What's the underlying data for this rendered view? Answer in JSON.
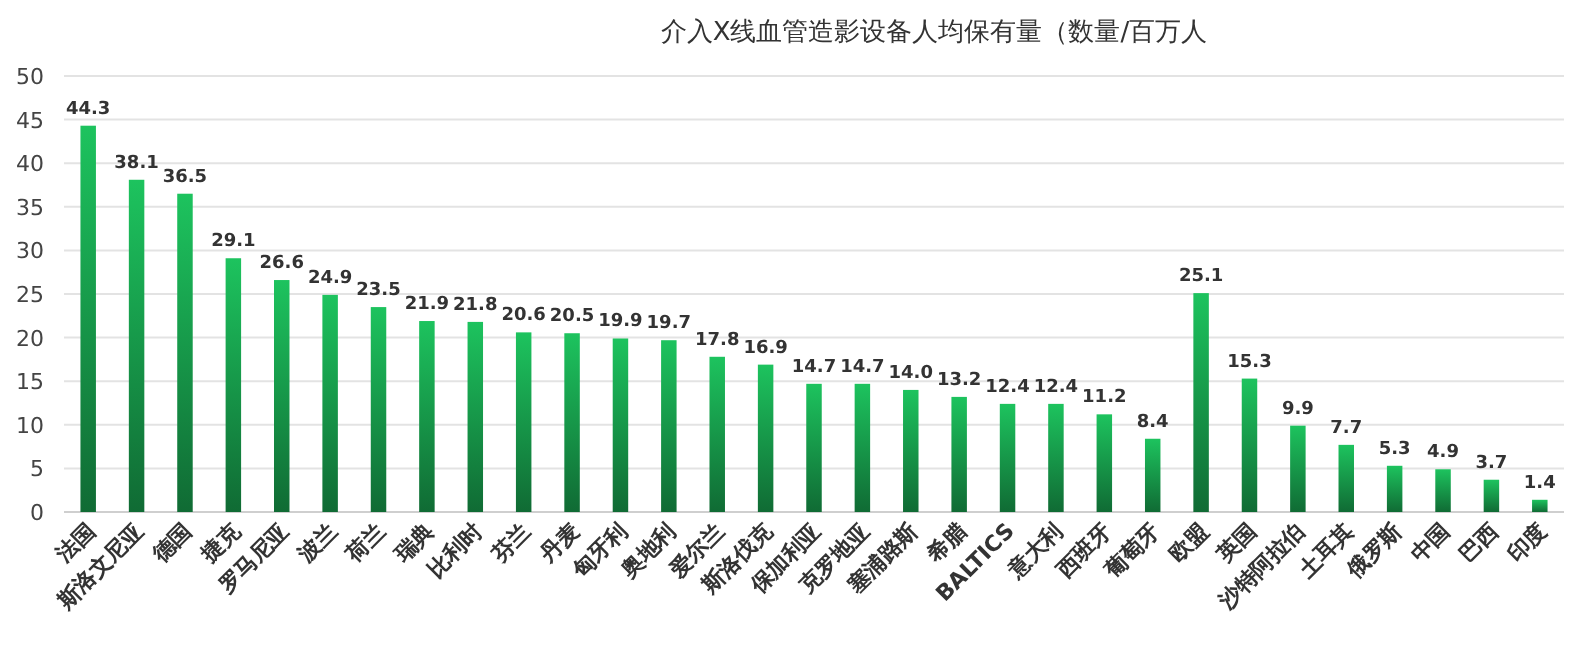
{
  "chart_data": {
    "type": "bar",
    "title": "介入X线血管造影设备人均保有量（数量/百万人",
    "categories": [
      "法国",
      "斯洛文尼亚",
      "德国",
      "捷克",
      "罗马尼亚",
      "波兰",
      "荷兰",
      "瑞典",
      "比利时",
      "芬兰",
      "丹麦",
      "匈牙利",
      "奥地利",
      "爱尔兰",
      "斯洛伐克",
      "保加利亚",
      "克罗地亚",
      "塞浦路斯",
      "希腊",
      "BALTICS",
      "意大利",
      "西班牙",
      "葡萄牙",
      "欧盟",
      "英国",
      "沙特阿拉伯",
      "土耳其",
      "俄罗斯",
      "中国",
      "巴西",
      "印度"
    ],
    "values": [
      44.3,
      38.1,
      36.5,
      29.1,
      26.6,
      24.9,
      23.5,
      21.9,
      21.8,
      20.6,
      20.5,
      19.9,
      19.7,
      17.8,
      16.9,
      14.7,
      14.7,
      14.0,
      13.2,
      12.4,
      12.4,
      11.2,
      8.4,
      25.1,
      15.3,
      9.9,
      7.7,
      5.3,
      4.9,
      3.7,
      1.4
    ],
    "value_labels": [
      "44.3",
      "38.1",
      "36.5",
      "29.1",
      "26.6",
      "24.9",
      "23.5",
      "21.9",
      "21.8",
      "20.6",
      "20.5",
      "19.9",
      "19.7",
      "17.8",
      "16.9",
      "14.7",
      "14.7",
      "14.0",
      "13.2",
      "12.4",
      "12.4",
      "11.2",
      "8.4",
      "25.1",
      "15.3",
      "9.9",
      "7.7",
      "5.3",
      "4.9",
      "3.7",
      "1.4"
    ],
    "color": "#1dc35e",
    "ylim": [
      0,
      50
    ],
    "yticks": [
      0,
      5,
      10,
      15,
      20,
      25,
      30,
      35,
      40,
      45,
      50
    ],
    "grid": "y"
  }
}
